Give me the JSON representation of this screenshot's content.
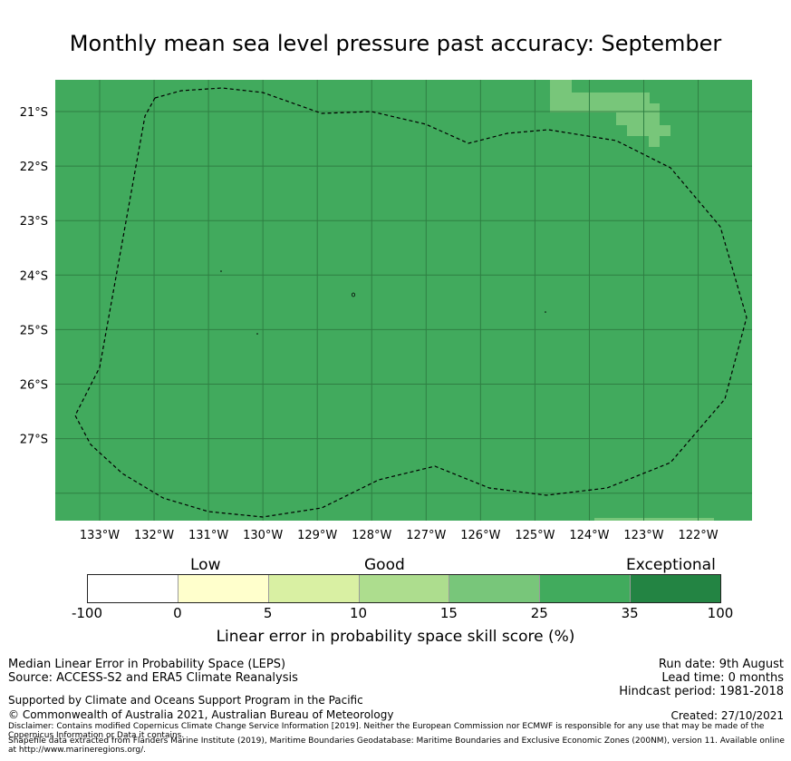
{
  "title": "Monthly mean sea level pressure past accuracy: September",
  "map": {
    "background_color": "#41aa5d",
    "light_patch_color": "#78c67a",
    "lat_labels": [
      "21°S",
      "22°S",
      "23°S",
      "24°S",
      "25°S",
      "26°S",
      "27°S"
    ],
    "lon_labels": [
      "133°W",
      "132°W",
      "131°W",
      "130°W",
      "129°W",
      "128°W",
      "127°W",
      "126°W",
      "125°W",
      "124°W",
      "123°W",
      "122°W"
    ],
    "boundary_style": "dashed"
  },
  "colorbar": {
    "categories": [
      {
        "label": "Low"
      },
      {
        "label": "Good"
      },
      {
        "label": "Exceptional"
      }
    ],
    "ticks": [
      "-100",
      "0",
      "5",
      "10",
      "15",
      "25",
      "35",
      "100"
    ],
    "colors": [
      "#ffffff",
      "#ffffcc",
      "#d9f0a3",
      "#addd8e",
      "#78c67a",
      "#41ab5d",
      "#238443"
    ],
    "title": "Linear error in probability space skill score (%)"
  },
  "footer": {
    "left_line1": "Median Linear Error in Probability Space (LEPS)",
    "left_line2": "Source: ACCESS-S2 and ERA5 Climate Reanalysis",
    "supported": "Supported by Climate and Oceans Support Program in the Pacific",
    "copyright": "© Commonwealth of Australia 2021, Australian Bureau of Meteorology",
    "disclaimer": "Disclaimer: Contains modified Copernicus Climate Change Service Information [2019]. Neither the European Commission nor ECMWF is responsible for any use that may be made of the Copernicus Information or Data it contains.",
    "shapefile": "Shapefile data extracted from Flanders Marine Institute (2019), Maritime Boundaries Geodatabase: Maritime Boundaries and Exclusive Economic Zones (200NM), version 11. Available online at http://www.marineregions.org/.",
    "run_date": "Run date: 9th August",
    "lead_time": "Lead time: 0 months",
    "hindcast": "Hindcast period: 1981-2018",
    "created": "Created: 27/10/2021"
  }
}
